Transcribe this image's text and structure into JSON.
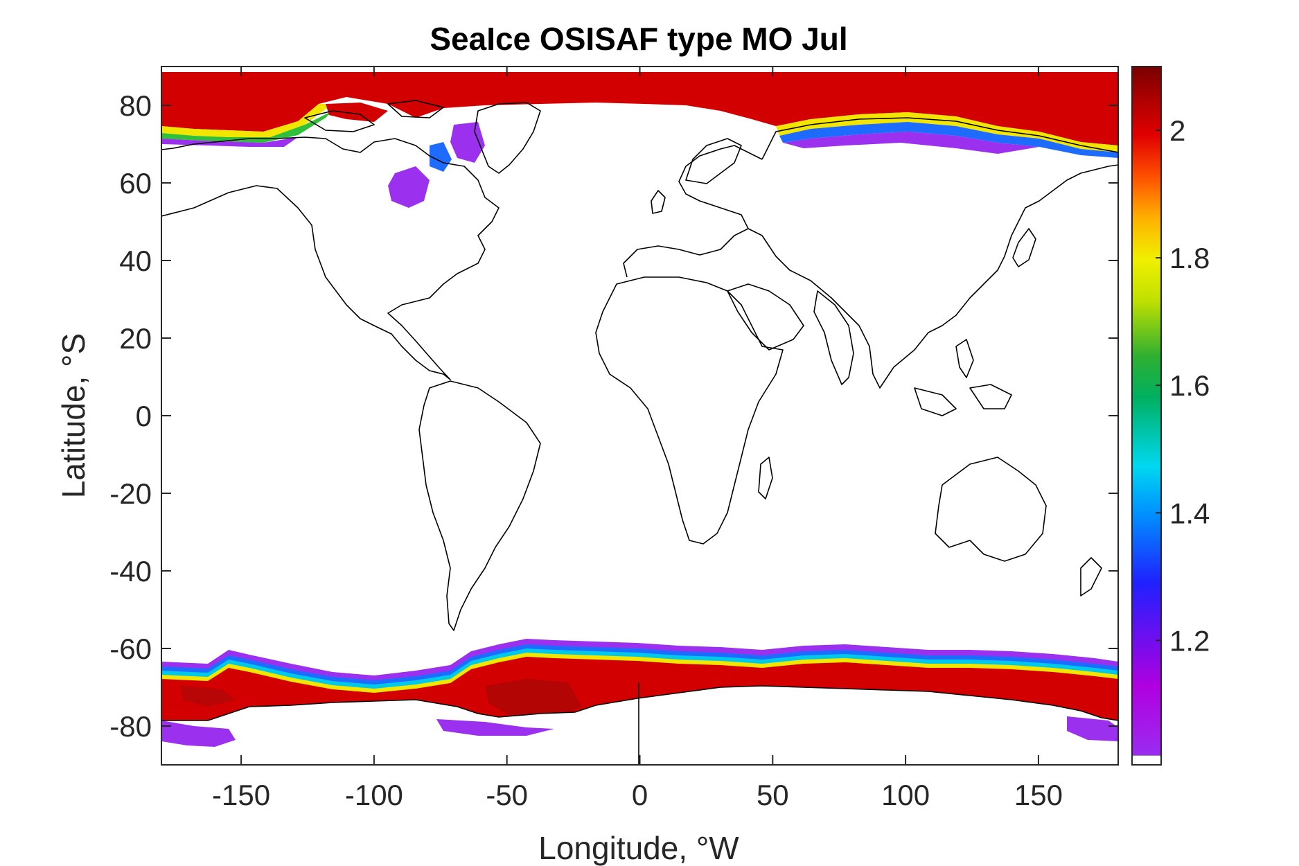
{
  "title": "SeaIce OSISAF type MO Jul",
  "xlabel": "Longitude, °W",
  "ylabel": "Latitude, °S",
  "x_ticks": [
    -150,
    -100,
    -50,
    0,
    50,
    100,
    150
  ],
  "y_ticks": [
    80,
    60,
    40,
    20,
    0,
    -20,
    -40,
    -60,
    -80
  ],
  "x_range": [
    -180,
    180
  ],
  "y_range": [
    -90,
    90
  ],
  "colorbar": {
    "range": [
      1.02,
      2.1
    ],
    "ticks": [
      1.2,
      1.4,
      1.6,
      1.8,
      2
    ],
    "colormap": [
      "#ffffff",
      "#9a2cf0",
      "#b000e0",
      "#2020ff",
      "#0090ff",
      "#00d8f0",
      "#00c060",
      "#30b030",
      "#c0e000",
      "#f0f000",
      "#ffb000",
      "#ff5000",
      "#e00000",
      "#b00000",
      "#7a0000"
    ]
  },
  "chart_data": {
    "type": "heatmap",
    "title": "SeaIce OSISAF type MO Jul",
    "xlabel": "Longitude, °W",
    "ylabel": "Latitude, °S",
    "xlim": [
      -180,
      180
    ],
    "ylim": [
      -90,
      90
    ],
    "clim": [
      1.02,
      2.1
    ],
    "colorbar_ticks": [
      1.2,
      1.4,
      1.6,
      1.8,
      2
    ],
    "grid": false,
    "legend": "colorbar-right"
  },
  "palette": {
    "ice": "#d20000",
    "ice_dark": "#9a0a0a",
    "edge_purple": "#9b30ee",
    "edge_blue": "#1e6cff",
    "edge_cyan": "#00c8e8",
    "edge_green": "#2fbf3a",
    "edge_yellow": "#f2e600",
    "edge_orange": "#ff9a00"
  }
}
